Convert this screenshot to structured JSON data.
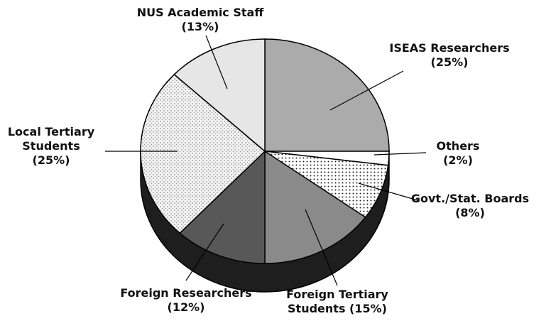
{
  "chart_data": {
    "type": "pie",
    "categories": [
      "ISEAS Researchers",
      "Others",
      "Govt./Stat. Boards",
      "Foreign Tertiary Students",
      "Foreign Researchers",
      "Local Tertiary Students",
      "NUS Academic Staff"
    ],
    "values": [
      25,
      2,
      8,
      15,
      12,
      25,
      13
    ],
    "value_labels": [
      "(25%)",
      "(2%)",
      "(8%)",
      "(15%)",
      "(12%)",
      "(25%)",
      "(13%)"
    ],
    "colors": [
      "#ababab",
      "#ffffff",
      "#ffffff",
      "#8a8a8a",
      "#585858",
      "#f2f2f2",
      "#e6e6e6"
    ],
    "patterns": [
      "none",
      "none",
      "dots",
      "none",
      "none",
      "crosshatch",
      "none"
    ],
    "side_color": "#1e1e1e"
  }
}
